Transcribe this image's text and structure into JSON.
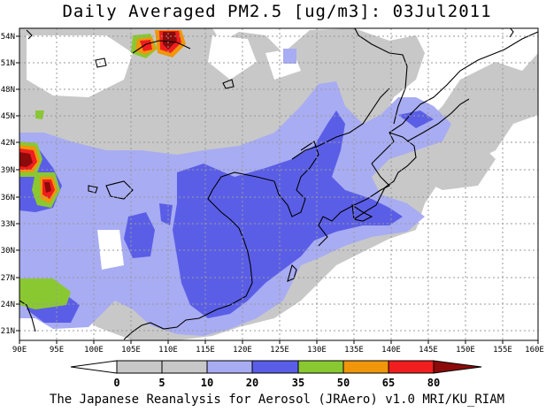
{
  "title": "Daily Averaged PM2.5 [ug/m3]: 03Jul2011",
  "footer": "The Japanese Reanalysis for Aerosol (JRAero) v1.0 MRI/KU_RIAM",
  "map": {
    "lon_labels": [
      "90E",
      "95E",
      "100E",
      "105E",
      "110E",
      "115E",
      "120E",
      "125E",
      "130E",
      "135E",
      "140E",
      "145E",
      "150E",
      "155E",
      "160E"
    ],
    "lat_labels": [
      "54N",
      "51N",
      "48N",
      "45N",
      "42N",
      "39N",
      "36N",
      "33N",
      "30N",
      "27N",
      "24N",
      "21N"
    ]
  },
  "colorbar": {
    "levels": [
      "0",
      "5",
      "10",
      "20",
      "35",
      "50",
      "65",
      "80"
    ],
    "colors": [
      "#ffffff",
      "#c8c8c8",
      "#a8acf2",
      "#5a5ee6",
      "#8ac832",
      "#f0960a",
      "#f01e1e",
      "#8c0a0a"
    ]
  },
  "palette": {
    "land_outline": "#000000",
    "grid": "#999999",
    "ocean": "#ffffff"
  }
}
